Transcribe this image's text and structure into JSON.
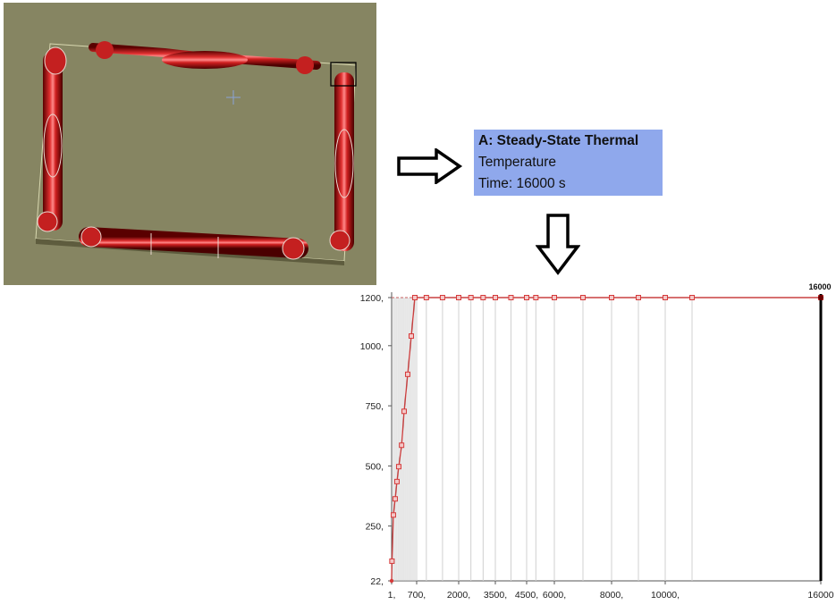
{
  "result_label": {
    "title": "A: Steady-State Thermal",
    "quantity": "Temperature",
    "time": "Time: 16000 s"
  },
  "viewport": {
    "background_color": "#868562",
    "frame_color": "#cc2222"
  },
  "colors": {
    "curve": "#c84040",
    "marker": "#d63a3a",
    "gridline": "#d0d0d0",
    "cursor": "#000000"
  },
  "chart_data": {
    "type": "line",
    "title": "",
    "xlabel": "",
    "ylabel": "",
    "xlim": [
      1,
      16000
    ],
    "ylim": [
      22,
      1200
    ],
    "cursor_label": "16000",
    "cursor_x": 16000,
    "y_ticks": [
      {
        "value": 22,
        "label": "22,"
      },
      {
        "value": 250,
        "label": "250,"
      },
      {
        "value": 500,
        "label": "500,"
      },
      {
        "value": 750,
        "label": "750,"
      },
      {
        "value": 1000,
        "label": "1000,"
      },
      {
        "value": 1200,
        "label": "1200,"
      }
    ],
    "x_ticks": [
      {
        "value": 1,
        "label": "1,"
      },
      {
        "value": 700,
        "label": "700,"
      },
      {
        "value": 2000,
        "label": "2000,"
      },
      {
        "value": 3500,
        "label": "3500,"
      },
      {
        "value": 4500,
        "label": "4500,"
      },
      {
        "value": 6000,
        "label": "6000,"
      },
      {
        "value": 8000,
        "label": "8000,"
      },
      {
        "value": 10000,
        "label": "10000,"
      },
      {
        "value": 16000,
        "label": "16000"
      }
    ],
    "gridlines_x": [
      50,
      100,
      150,
      200,
      250,
      300,
      350,
      400,
      450,
      500,
      550,
      600,
      650,
      700,
      1000,
      1500,
      2000,
      2500,
      3000,
      3500,
      4000,
      4500,
      5000,
      6000,
      7000,
      8000,
      9000,
      10000,
      11000
    ],
    "series": [
      {
        "points": [
          {
            "x": 1,
            "y": 22
          },
          {
            "x": 10,
            "y": 104
          },
          {
            "x": 50,
            "y": 296
          },
          {
            "x": 100,
            "y": 363
          },
          {
            "x": 150,
            "y": 435
          },
          {
            "x": 200,
            "y": 497
          },
          {
            "x": 280,
            "y": 586
          },
          {
            "x": 350,
            "y": 727
          },
          {
            "x": 450,
            "y": 881
          },
          {
            "x": 550,
            "y": 1040
          },
          {
            "x": 650,
            "y": 1200
          },
          {
            "x": 1000,
            "y": 1200
          },
          {
            "x": 1500,
            "y": 1200
          },
          {
            "x": 2000,
            "y": 1200
          },
          {
            "x": 2500,
            "y": 1200
          },
          {
            "x": 3000,
            "y": 1200
          },
          {
            "x": 3500,
            "y": 1200
          },
          {
            "x": 4000,
            "y": 1200
          },
          {
            "x": 4500,
            "y": 1200
          },
          {
            "x": 5000,
            "y": 1200
          },
          {
            "x": 6000,
            "y": 1200
          },
          {
            "x": 7000,
            "y": 1200
          },
          {
            "x": 8000,
            "y": 1200
          },
          {
            "x": 9000,
            "y": 1200
          },
          {
            "x": 10000,
            "y": 1200
          },
          {
            "x": 11000,
            "y": 1200
          },
          {
            "x": 16000,
            "y": 1200
          }
        ]
      }
    ]
  }
}
